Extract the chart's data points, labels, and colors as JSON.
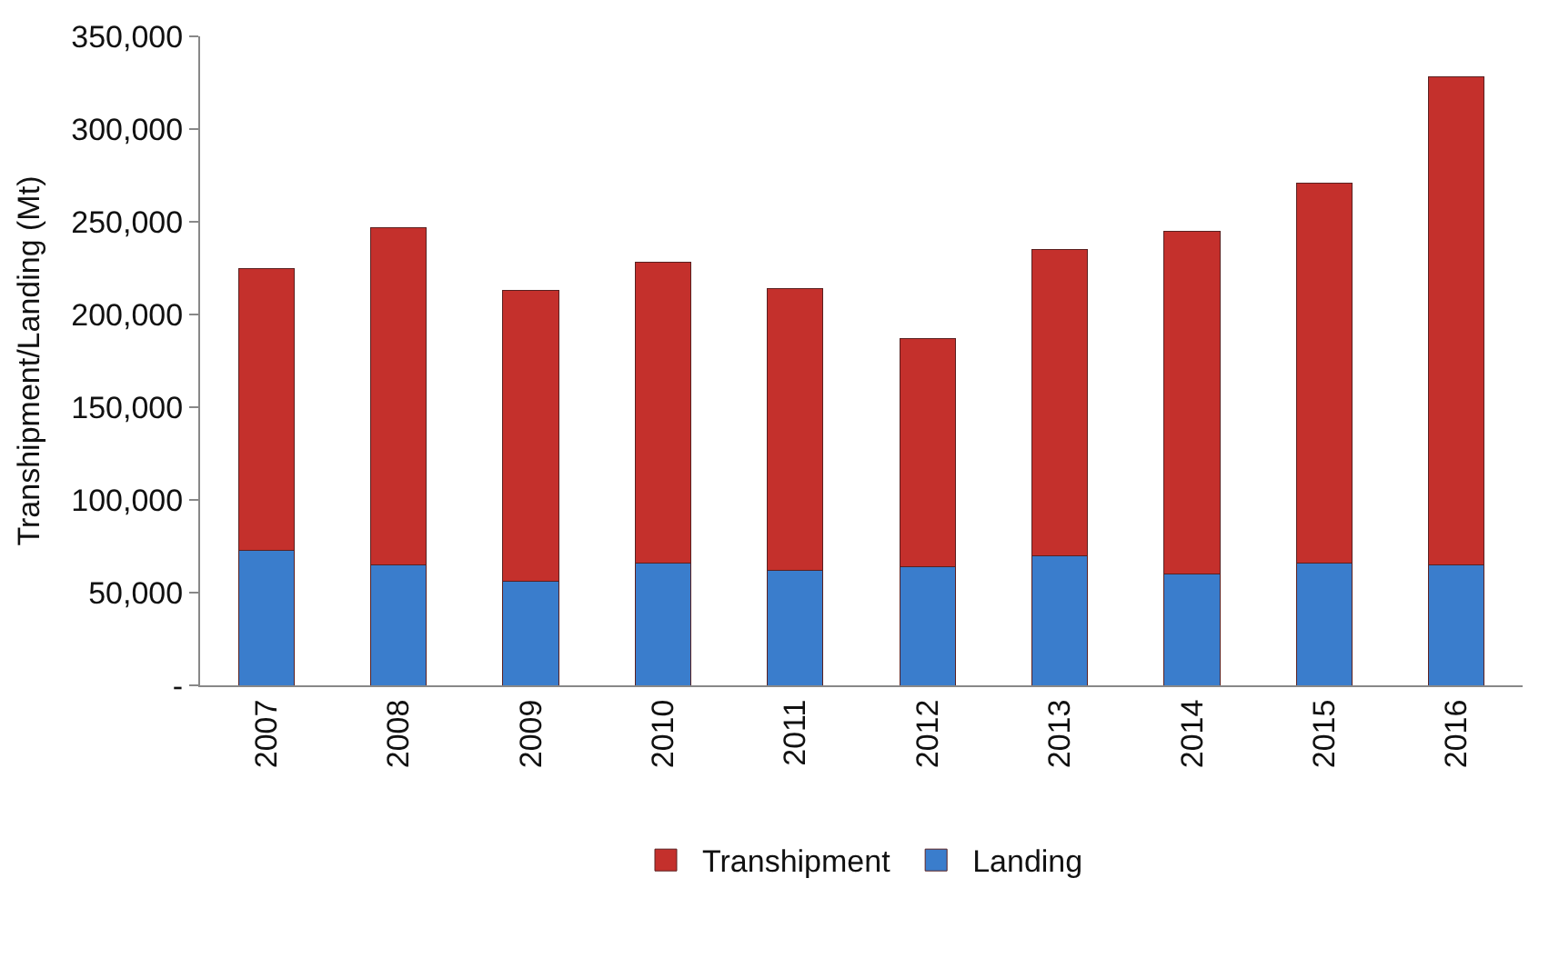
{
  "chart_data": {
    "type": "bar",
    "stacked": true,
    "ylabel": "Transhipment/Landing (Mt)",
    "categories": [
      "2007",
      "2008",
      "2009",
      "2010",
      "2011",
      "2012",
      "2013",
      "2014",
      "2015",
      "2016"
    ],
    "series": [
      {
        "name": "Landing",
        "color": "#3a7dcc",
        "values": [
          73000,
          65000,
          56000,
          66000,
          62000,
          64000,
          70000,
          60000,
          66000,
          65000
        ]
      },
      {
        "name": "Transhipment",
        "color": "#c4302c",
        "values": [
          152000,
          182000,
          157000,
          162000,
          152000,
          123000,
          165000,
          185000,
          205000,
          263000
        ]
      }
    ],
    "ylim": [
      0,
      350000
    ],
    "yticks": [
      {
        "value": 0,
        "label": "-"
      },
      {
        "value": 50000,
        "label": "50,000"
      },
      {
        "value": 100000,
        "label": "100,000"
      },
      {
        "value": 150000,
        "label": "150,000"
      },
      {
        "value": 200000,
        "label": "200,000"
      },
      {
        "value": 250000,
        "label": "250,000"
      },
      {
        "value": 300000,
        "label": "300,000"
      },
      {
        "value": 350000,
        "label": "350,000"
      }
    ],
    "grid": false,
    "legend": "bottom"
  }
}
